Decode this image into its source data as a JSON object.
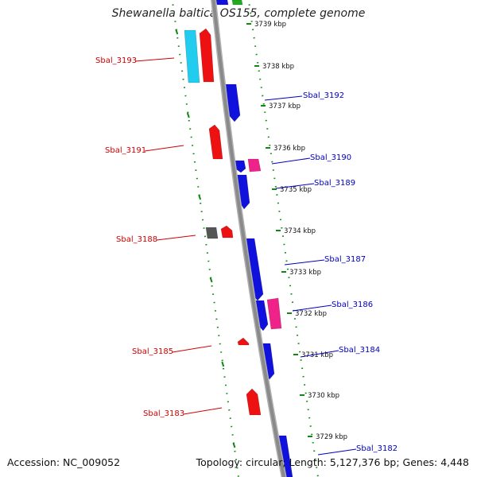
{
  "title": "Shewanella baltica OS155, complete genome",
  "footer": {
    "accession": "Accession: NC_009052",
    "stats": "Topology: circular; Length: 5,127,376 bp; Genes: 4,448"
  },
  "colors": {
    "backbone": "#8a8a8a",
    "dotted_track": "#118811",
    "left_label": "#d00000",
    "right_label": "#0000c0",
    "forward_gene": "#ee1111",
    "reverse_gene": "#1111dd",
    "cyan_gene": "#22ccee",
    "magenta_gene": "#ee2288",
    "gray_gene": "#555555",
    "green_gene": "#22aa22"
  },
  "ticks": [
    {
      "label": "3739 kbp"
    },
    {
      "label": "3738 kbp"
    },
    {
      "label": "3737 kbp"
    },
    {
      "label": "3736 kbp"
    },
    {
      "label": "3735 kbp"
    },
    {
      "label": "3734 kbp"
    },
    {
      "label": "3733 kbp"
    },
    {
      "label": "3732 kbp"
    },
    {
      "label": "3731 kbp"
    },
    {
      "label": "3730 kbp"
    },
    {
      "label": "3729 kbp"
    }
  ],
  "gene_labels": [
    {
      "text": "Sbal_3193",
      "side": "left"
    },
    {
      "text": "Sbal_3192",
      "side": "right"
    },
    {
      "text": "Sbal_3191",
      "side": "left"
    },
    {
      "text": "Sbal_3190",
      "side": "right"
    },
    {
      "text": "Sbal_3189",
      "side": "right"
    },
    {
      "text": "Sbal_3188",
      "side": "left"
    },
    {
      "text": "Sbal_3187",
      "side": "right"
    },
    {
      "text": "Sbal_3186",
      "side": "right"
    },
    {
      "text": "Sbal_3185",
      "side": "left"
    },
    {
      "text": "Sbal_3184",
      "side": "right"
    },
    {
      "text": "Sbal_3183",
      "side": "left"
    },
    {
      "text": "Sbal_3182",
      "side": "right"
    }
  ]
}
